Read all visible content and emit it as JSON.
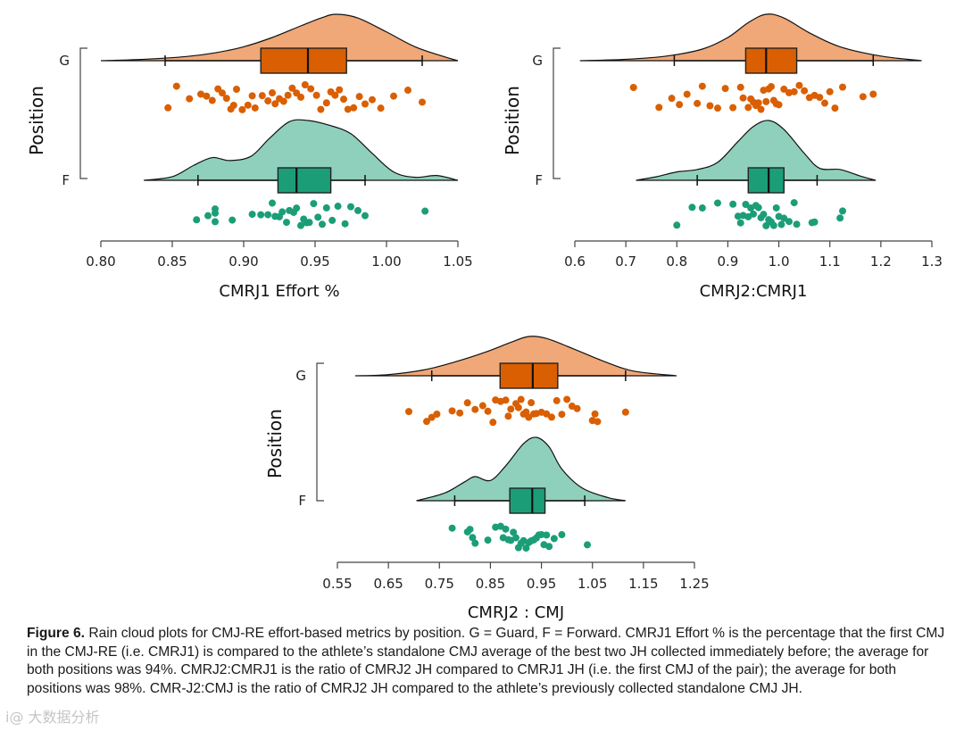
{
  "chart_data": [
    {
      "type": "raincloud",
      "xlabel": "CMRJ1 Effort %",
      "ylabel": "Position",
      "xlim": [
        0.8,
        1.05
      ],
      "xticks": [
        "0.80",
        "0.85",
        "0.90",
        "0.95",
        "1.00",
        "1.05"
      ],
      "xtick_values": [
        0.8,
        0.85,
        0.9,
        0.95,
        1.0,
        1.05
      ],
      "groups": [
        {
          "name": "G",
          "color": "#d95f02",
          "cloud_color": "#f0a878",
          "box": {
            "whisker_low": 0.845,
            "q1": 0.912,
            "median": 0.945,
            "q3": 0.972,
            "whisker_high": 1.025
          },
          "density": [
            [
              0.8,
              0.0
            ],
            [
              0.83,
              0.03
            ],
            [
              0.86,
              0.09
            ],
            [
              0.88,
              0.17
            ],
            [
              0.9,
              0.3
            ],
            [
              0.92,
              0.5
            ],
            [
              0.94,
              0.75
            ],
            [
              0.955,
              0.93
            ],
            [
              0.965,
              1.0
            ],
            [
              0.98,
              0.92
            ],
            [
              1.0,
              0.62
            ],
            [
              1.02,
              0.3
            ],
            [
              1.04,
              0.09
            ],
            [
              1.05,
              0.0
            ]
          ],
          "points": [
            0.847,
            0.853,
            0.862,
            0.87,
            0.874,
            0.878,
            0.882,
            0.885,
            0.888,
            0.891,
            0.893,
            0.895,
            0.899,
            0.903,
            0.906,
            0.908,
            0.913,
            0.917,
            0.92,
            0.922,
            0.925,
            0.928,
            0.931,
            0.934,
            0.937,
            0.94,
            0.943,
            0.947,
            0.951,
            0.954,
            0.958,
            0.961,
            0.964,
            0.967,
            0.97,
            0.973,
            0.977,
            0.981,
            0.985,
            0.99,
            0.996,
            1.005,
            1.015,
            1.025
          ]
        },
        {
          "name": "F",
          "color": "#1b9e77",
          "cloud_color": "#8fd0bc",
          "box": {
            "whisker_low": 0.868,
            "q1": 0.924,
            "median": 0.937,
            "q3": 0.961,
            "whisker_high": 0.985
          },
          "density": [
            [
              0.83,
              0.0
            ],
            [
              0.85,
              0.06
            ],
            [
              0.865,
              0.25
            ],
            [
              0.878,
              0.38
            ],
            [
              0.89,
              0.33
            ],
            [
              0.905,
              0.4
            ],
            [
              0.918,
              0.7
            ],
            [
              0.932,
              0.98
            ],
            [
              0.945,
              1.0
            ],
            [
              0.96,
              0.92
            ],
            [
              0.975,
              0.78
            ],
            [
              0.99,
              0.45
            ],
            [
              1.005,
              0.14
            ],
            [
              1.02,
              0.05
            ],
            [
              1.035,
              0.08
            ],
            [
              1.05,
              0.0
            ]
          ],
          "points": [
            0.867,
            0.875,
            0.88,
            0.88,
            0.88,
            0.892,
            0.906,
            0.912,
            0.917,
            0.92,
            0.922,
            0.925,
            0.927,
            0.93,
            0.932,
            0.935,
            0.937,
            0.94,
            0.942,
            0.944,
            0.946,
            0.949,
            0.952,
            0.955,
            0.958,
            0.962,
            0.966,
            0.971,
            0.975,
            0.98,
            0.985,
            1.027
          ]
        }
      ]
    },
    {
      "type": "raincloud",
      "xlabel": "CMRJ2:CMRJ1",
      "ylabel": "Position",
      "xlim": [
        0.6,
        1.3
      ],
      "xticks": [
        "0.6",
        "0.7",
        "0.8",
        "0.9",
        "1.0",
        "1.1",
        "1.2",
        "1.3"
      ],
      "xtick_values": [
        0.6,
        0.7,
        0.8,
        0.9,
        1.0,
        1.1,
        1.2,
        1.3
      ],
      "groups": [
        {
          "name": "G",
          "color": "#d95f02",
          "cloud_color": "#f0a878",
          "box": {
            "whisker_low": 0.795,
            "q1": 0.935,
            "median": 0.975,
            "q3": 1.035,
            "whisker_high": 1.185
          },
          "density": [
            [
              0.61,
              0.0
            ],
            [
              0.7,
              0.03
            ],
            [
              0.78,
              0.1
            ],
            [
              0.85,
              0.25
            ],
            [
              0.9,
              0.5
            ],
            [
              0.94,
              0.82
            ],
            [
              0.975,
              1.0
            ],
            [
              1.01,
              0.92
            ],
            [
              1.06,
              0.6
            ],
            [
              1.12,
              0.3
            ],
            [
              1.2,
              0.1
            ],
            [
              1.28,
              0.0
            ]
          ],
          "points": [
            0.715,
            0.765,
            0.79,
            0.805,
            0.82,
            0.84,
            0.85,
            0.865,
            0.88,
            0.895,
            0.91,
            0.925,
            0.93,
            0.94,
            0.945,
            0.95,
            0.955,
            0.96,
            0.965,
            0.97,
            0.975,
            0.98,
            0.985,
            0.99,
            0.995,
            1.0,
            1.01,
            1.02,
            1.03,
            1.04,
            1.05,
            1.06,
            1.07,
            1.08,
            1.09,
            1.1,
            1.11,
            1.125,
            1.165,
            1.185
          ]
        },
        {
          "name": "F",
          "color": "#1b9e77",
          "cloud_color": "#8fd0bc",
          "box": {
            "whisker_low": 0.84,
            "q1": 0.94,
            "median": 0.98,
            "q3": 1.01,
            "whisker_high": 1.075
          },
          "density": [
            [
              0.72,
              0.0
            ],
            [
              0.76,
              0.06
            ],
            [
              0.8,
              0.14
            ],
            [
              0.84,
              0.18
            ],
            [
              0.88,
              0.3
            ],
            [
              0.92,
              0.65
            ],
            [
              0.95,
              0.9
            ],
            [
              0.98,
              1.0
            ],
            [
              1.01,
              0.85
            ],
            [
              1.05,
              0.45
            ],
            [
              1.08,
              0.2
            ],
            [
              1.12,
              0.18
            ],
            [
              1.16,
              0.07
            ],
            [
              1.19,
              0.0
            ]
          ],
          "points": [
            0.8,
            0.83,
            0.85,
            0.88,
            0.91,
            0.92,
            0.925,
            0.93,
            0.935,
            0.94,
            0.945,
            0.95,
            0.955,
            0.96,
            0.965,
            0.97,
            0.975,
            0.98,
            0.985,
            0.99,
            0.995,
            1.0,
            1.005,
            1.01,
            1.02,
            1.03,
            1.035,
            1.065,
            1.07,
            1.12,
            1.125
          ]
        }
      ]
    },
    {
      "type": "raincloud",
      "xlabel": "CMRJ2 : CMJ",
      "ylabel": "Position",
      "xlim": [
        0.55,
        1.25
      ],
      "xticks": [
        "0.55",
        "0.65",
        "0.75",
        "0.85",
        "0.95",
        "1.05",
        "1.15",
        "1.25"
      ],
      "xtick_values": [
        0.55,
        0.65,
        0.75,
        0.85,
        0.95,
        1.05,
        1.15,
        1.25
      ],
      "groups": [
        {
          "name": "G",
          "color": "#d95f02",
          "cloud_color": "#f0a878",
          "box": {
            "whisker_low": 0.735,
            "q1": 0.869,
            "median": 0.933,
            "q3": 0.982,
            "whisker_high": 1.115
          },
          "density": [
            [
              0.585,
              0.0
            ],
            [
              0.65,
              0.03
            ],
            [
              0.72,
              0.15
            ],
            [
              0.78,
              0.35
            ],
            [
              0.84,
              0.6
            ],
            [
              0.89,
              0.85
            ],
            [
              0.925,
              1.0
            ],
            [
              0.96,
              0.95
            ],
            [
              1.01,
              0.7
            ],
            [
              1.07,
              0.38
            ],
            [
              1.13,
              0.12
            ],
            [
              1.215,
              0.0
            ]
          ],
          "points": [
            0.69,
            0.725,
            0.735,
            0.745,
            0.775,
            0.79,
            0.805,
            0.82,
            0.835,
            0.845,
            0.855,
            0.86,
            0.87,
            0.88,
            0.885,
            0.89,
            0.9,
            0.905,
            0.91,
            0.915,
            0.92,
            0.925,
            0.93,
            0.935,
            0.94,
            0.95,
            0.96,
            0.97,
            0.98,
            0.99,
            1.0,
            1.01,
            1.02,
            1.05,
            1.055,
            1.06,
            1.115
          ]
        },
        {
          "name": "F",
          "color": "#1b9e77",
          "cloud_color": "#8fd0bc",
          "box": {
            "whisker_low": 0.78,
            "q1": 0.888,
            "median": 0.932,
            "q3": 0.957,
            "whisker_high": 1.035
          },
          "density": [
            [
              0.705,
              0.0
            ],
            [
              0.76,
              0.12
            ],
            [
              0.8,
              0.3
            ],
            [
              0.82,
              0.38
            ],
            [
              0.85,
              0.32
            ],
            [
              0.88,
              0.55
            ],
            [
              0.915,
              0.9
            ],
            [
              0.94,
              1.0
            ],
            [
              0.965,
              0.85
            ],
            [
              0.99,
              0.5
            ],
            [
              1.03,
              0.2
            ],
            [
              1.08,
              0.05
            ],
            [
              1.115,
              0.0
            ]
          ],
          "points": [
            0.775,
            0.805,
            0.81,
            0.815,
            0.82,
            0.845,
            0.86,
            0.87,
            0.875,
            0.88,
            0.885,
            0.89,
            0.895,
            0.9,
            0.905,
            0.91,
            0.915,
            0.92,
            0.925,
            0.93,
            0.935,
            0.94,
            0.945,
            0.95,
            0.955,
            0.96,
            0.965,
            0.975,
            0.99,
            1.04
          ]
        }
      ]
    }
  ],
  "caption": {
    "label": "Figure 6.",
    "text": " Rain cloud plots for CMJ-RE effort-based metrics by position. G = Guard, F = Forward. CMRJ1 Effort % is the percentage that the first CMJ in the CMJ-RE (i.e. CMRJ1) is compared to the athlete’s standalone CMJ average of the best two JH collected immediately before; the average for both positions was 94%. CMRJ2:CMRJ1 is the ratio of CMRJ2 JH compared to CMRJ1 JH (i.e. the first CMJ of the pair); the average for both positions was 98%. CMR-J2:CMJ is the ratio of CMRJ2 JH compared to the athlete’s previously collected standalone CMJ JH."
  },
  "watermark": "i@ 大数据分析"
}
